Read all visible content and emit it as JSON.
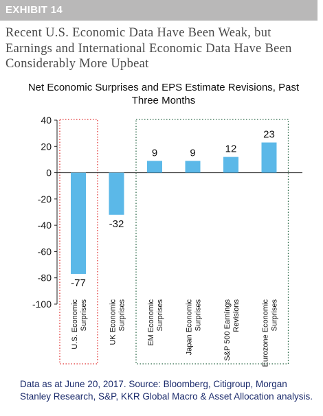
{
  "exhibit": {
    "label": "EXHIBIT 14"
  },
  "headline": "Recent U.S. Economic Data Have Been Weak, but Earnings and International Economic Data Have Been Considerably More Upbeat",
  "chart_data": {
    "type": "bar",
    "title": "Net Economic Surprises and EPS Estimate Revisions, Past Three Months",
    "categories": [
      [
        "U.S. Economic",
        "Surprises"
      ],
      [
        "UK Economic",
        "Surprises"
      ],
      [
        "EM Economic",
        "Surprises"
      ],
      [
        "Japan Economic",
        "Surprises"
      ],
      [
        "S&P 500 Earnings",
        "Revisions"
      ],
      [
        "Eurozone Economic",
        "Surprises"
      ]
    ],
    "values": [
      -77,
      -32,
      9,
      9,
      12,
      23
    ],
    "data_labels": [
      "-77",
      "-32",
      "9",
      "9",
      "12",
      "23"
    ],
    "ylim": [
      -100,
      40
    ],
    "yticks": [
      40,
      20,
      0,
      -20,
      -40,
      -60,
      -80,
      -100
    ],
    "ytick_labels": [
      "40",
      "20",
      "0",
      "-20",
      "-40",
      "-60",
      "-80",
      "-100"
    ],
    "xlabel": "",
    "ylabel": "",
    "grid": false,
    "bar_color": "#5bb8e8",
    "highlight_boxes": [
      {
        "categories": [
          0
        ],
        "color": "#e03030",
        "style": "dotted"
      },
      {
        "categories": [
          2,
          3,
          4,
          5
        ],
        "color": "#2e6b4a",
        "style": "dotted"
      }
    ]
  },
  "footnote": "Data as at June 20, 2017. Source: Bloomberg, Citigroup, Morgan Stanley Research, S&P, KKR Global Macro & Asset Allocation analysis."
}
